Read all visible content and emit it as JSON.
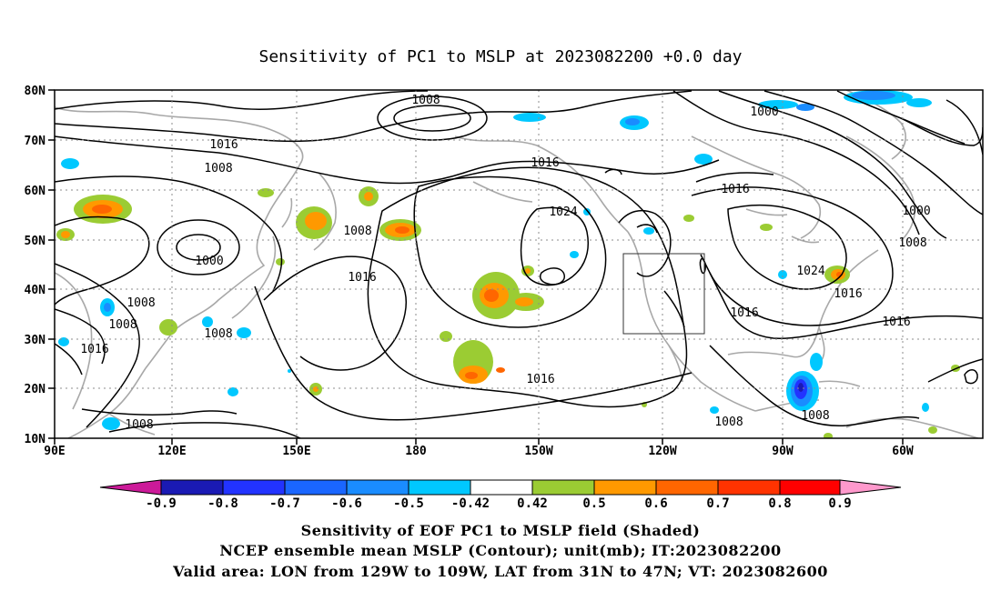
{
  "title": "Sensitivity of PC1 to MSLP at 2023082200 +0.0 day",
  "lat_labels": [
    "80N",
    "70N",
    "60N",
    "50N",
    "40N",
    "30N",
    "20N",
    "10N"
  ],
  "lon_labels": [
    "90E",
    "120E",
    "150E",
    "180",
    "150W",
    "120W",
    "90W",
    "60W"
  ],
  "contour_labels": [
    {
      "text": "1008"
    },
    {
      "text": "1016"
    },
    {
      "text": "1008"
    },
    {
      "text": "1000"
    },
    {
      "text": "1008"
    },
    {
      "text": "1008"
    },
    {
      "text": "1016"
    },
    {
      "text": "1008"
    },
    {
      "text": "1008"
    },
    {
      "text": "1016"
    },
    {
      "text": "1016"
    },
    {
      "text": "1024"
    },
    {
      "text": "1016"
    },
    {
      "text": "1000"
    },
    {
      "text": "1016"
    },
    {
      "text": "1000"
    },
    {
      "text": "1008"
    },
    {
      "text": "1024"
    },
    {
      "text": "1016"
    },
    {
      "text": "1016"
    },
    {
      "text": "1016"
    },
    {
      "text": "1008"
    },
    {
      "text": "1008"
    },
    {
      "text": "1008"
    }
  ],
  "valid_area": {
    "lon_min": "129W",
    "lon_max": "109W",
    "lat_min": "31N",
    "lat_max": "47N"
  },
  "colorbar": {
    "labels": [
      "-0.9",
      "-0.8",
      "-0.7",
      "-0.6",
      "-0.5",
      "-0.42",
      "0.42",
      "0.5",
      "0.6",
      "0.7",
      "0.8",
      "0.9"
    ],
    "colors": [
      "#cc1a99",
      "#1a1ab4",
      "#2233ff",
      "#1a66ff",
      "#1a8cff",
      "#00c8ff",
      "#ffffff",
      "#9bcc33",
      "#ff9900",
      "#ff6600",
      "#ff3300",
      "#ff0000",
      "#ff99cc"
    ]
  },
  "captions": [
    "Sensitivity of EOF PC1 to MSLP field (Shaded)",
    "NCEP ensemble mean MSLP (Contour); unit(mb); IT:2023082200",
    "Valid area: LON from 129W to 109W, LAT from 31N to 47N; VT: 2023082600"
  ]
}
